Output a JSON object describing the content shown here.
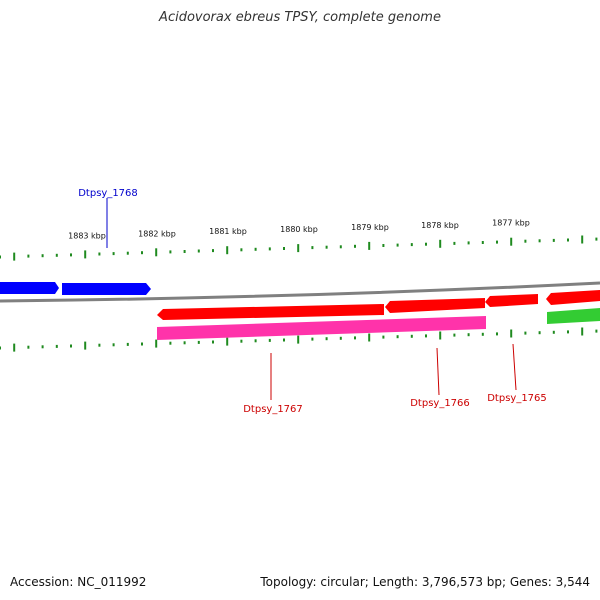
{
  "title": "Acidovorax ebreus TPSY, complete genome",
  "footer": {
    "accession": "Accession: NC_011992",
    "summary": "Topology: circular; Length: 3,796,573 bp; Genes: 3,544"
  },
  "colors": {
    "backbone": "#808080",
    "ticks": "#1f8a1f",
    "label_blue": "#0000cc",
    "label_red": "#cc0000",
    "gene_blue": "#0000ff",
    "gene_red": "#ff0000",
    "gene_pink": "#ff33aa",
    "gene_green": "#33cc33"
  },
  "scale": {
    "unit": "kbp",
    "labels": [
      "1883 kbp",
      "1882 kbp",
      "1881 kbp",
      "1880 kbp",
      "1879 kbp",
      "1878 kbp",
      "1877 kbp"
    ]
  },
  "gene_labels": [
    {
      "name": "Dtpsy_1768",
      "color": "blue"
    },
    {
      "name": "Dtpsy_1767",
      "color": "red"
    },
    {
      "name": "Dtpsy_1766",
      "color": "red"
    },
    {
      "name": "Dtpsy_1765",
      "color": "red"
    }
  ]
}
